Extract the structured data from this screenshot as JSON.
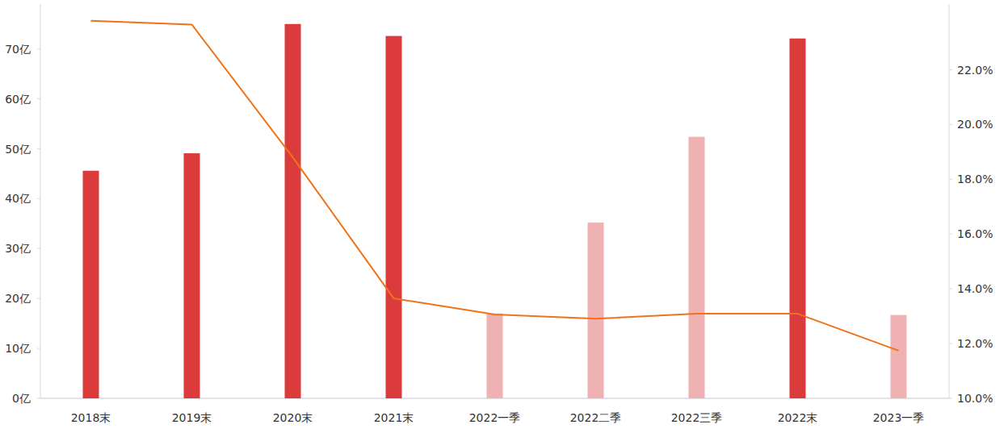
{
  "chart_data": {
    "type": "bar",
    "categories": [
      "2018末",
      "2019末",
      "2020末",
      "2021末",
      "2022一季",
      "2022二季",
      "2022三季",
      "2022末",
      "2023一季"
    ],
    "series": [
      {
        "type": "bar",
        "colors": [
          "#dc3b3c",
          "#dc3b3c",
          "#dc3b3c",
          "#dc3b3c",
          "#f0b1b2",
          "#f0b1b2",
          "#f0b1b2",
          "#dc3b3c",
          "#f0b1b2"
        ],
        "values": [
          45.6,
          49.1,
          75.0,
          72.6,
          17.0,
          35.2,
          52.4,
          72.1,
          16.7
        ]
      },
      {
        "type": "line",
        "axis": "y2",
        "color": "#f07318",
        "values": [
          23.79,
          23.65,
          18.8,
          13.65,
          13.06,
          12.91,
          13.09,
          13.09,
          11.74
        ]
      }
    ],
    "ylim": [
      0,
      79
    ],
    "yticks": [
      {
        "value": 0,
        "label": "0亿"
      },
      {
        "value": 10,
        "label": "10亿"
      },
      {
        "value": 20,
        "label": "20亿"
      },
      {
        "value": 30,
        "label": "30亿"
      },
      {
        "value": 40,
        "label": "40亿"
      },
      {
        "value": 50,
        "label": "50亿"
      },
      {
        "value": 60,
        "label": "60亿"
      },
      {
        "value": 70,
        "label": "70亿"
      }
    ],
    "y2lim": [
      10,
      24.4
    ],
    "y2ticks": [
      {
        "value": 10,
        "label": "10.0%"
      },
      {
        "value": 12,
        "label": "12.0%"
      },
      {
        "value": 14,
        "label": "14.0%"
      },
      {
        "value": 16,
        "label": "16.0%"
      },
      {
        "value": 18,
        "label": "18.0%"
      },
      {
        "value": 20,
        "label": "20.0%"
      },
      {
        "value": 22,
        "label": "22.0%"
      }
    ],
    "grid": false
  }
}
